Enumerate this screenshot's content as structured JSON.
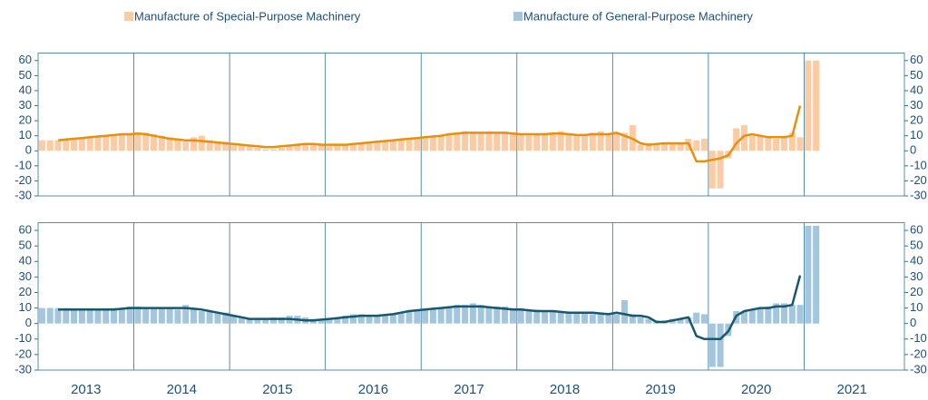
{
  "chart_data": [
    {
      "type": "bar",
      "series": [
        {
          "name": "Manufacture of Special-Purpose Machinery",
          "color": "#fbcba3",
          "values": [
            7,
            7,
            7,
            8,
            8,
            9,
            9,
            10,
            10,
            11,
            11,
            11,
            12,
            12,
            11,
            10,
            9,
            7,
            6,
            9,
            10,
            7,
            6,
            6,
            5,
            4,
            3,
            2,
            1,
            1,
            2,
            3,
            4,
            5,
            4,
            4,
            3,
            4,
            4,
            4,
            5,
            5,
            6,
            6,
            7,
            7,
            8,
            8,
            9,
            9,
            10,
            11,
            12,
            13,
            12,
            12,
            13,
            12,
            12,
            12,
            11,
            10,
            11,
            11,
            12,
            13,
            11,
            10,
            10,
            12,
            13,
            11,
            12,
            12,
            17,
            4,
            5,
            4,
            5,
            5,
            5,
            8,
            7,
            8,
            -25,
            -25,
            -5,
            15,
            17,
            10,
            10,
            9,
            8,
            10,
            12,
            9,
            60,
            60,
            null,
            null,
            null,
            null,
            null,
            null,
            null,
            null,
            null,
            null
          ]
        },
        {
          "type": "line",
          "color": "#e8900e",
          "values": [
            null,
            null,
            7,
            7.5,
            8,
            8.5,
            9,
            9.5,
            10,
            10.5,
            11,
            11,
            11.5,
            11,
            10,
            9,
            8,
            7.5,
            7,
            7,
            6.5,
            6,
            5.5,
            5,
            4.5,
            4,
            3.5,
            3,
            2.5,
            2.5,
            3,
            3.5,
            4,
            4.5,
            4.5,
            4,
            4,
            4,
            4,
            4.5,
            5,
            5.5,
            6,
            6.5,
            7,
            7.5,
            8,
            8.5,
            9,
            9.5,
            10,
            11,
            11.5,
            12,
            12,
            12,
            12,
            12,
            12,
            11.5,
            11,
            11,
            11,
            11,
            11.5,
            11.5,
            11,
            10.5,
            10.5,
            11,
            11,
            11,
            12,
            10,
            8,
            5,
            4,
            4.5,
            5,
            5,
            5,
            5,
            -7,
            -7,
            -6,
            -5,
            -3,
            5,
            10,
            11,
            10,
            9,
            9,
            9,
            10,
            30,
            null,
            null,
            null,
            null,
            null,
            null,
            null,
            null,
            null,
            null,
            null,
            null
          ]
        }
      ],
      "ylim": [
        -30,
        65
      ],
      "yticks": [
        -30,
        -20,
        -10,
        0,
        10,
        20,
        30,
        40,
        50,
        60
      ],
      "y2lim": [
        -30,
        65
      ],
      "y2ticks": [
        -30,
        -20,
        -10,
        0,
        10,
        20,
        30,
        40,
        50,
        60
      ]
    },
    {
      "type": "bar",
      "categories": [
        null,
        null,
        null,
        null,
        null,
        "2013",
        null,
        null,
        null,
        null,
        null,
        null,
        null,
        null,
        null,
        null,
        null,
        "2014",
        null,
        null,
        null,
        null,
        null,
        null,
        null,
        null,
        null,
        null,
        null,
        "2015",
        null,
        null,
        null,
        null,
        null,
        null,
        null,
        null,
        null,
        null,
        null,
        "2016",
        null,
        null,
        null,
        null,
        null,
        null,
        null,
        null,
        null,
        null,
        null,
        "2017",
        null,
        null,
        null,
        null,
        null,
        null,
        null,
        null,
        null,
        null,
        null,
        "2018",
        null,
        null,
        null,
        null,
        null,
        null,
        null,
        null,
        null,
        null,
        null,
        "2019",
        null,
        null,
        null,
        null,
        null,
        null,
        null,
        null,
        null,
        null,
        null,
        "2020",
        null,
        null,
        null,
        null,
        null,
        null,
        null,
        null,
        null,
        null,
        null,
        "2021",
        null,
        null,
        null,
        null,
        null,
        null
      ],
      "series": [
        {
          "name": "Manufacture of General-Purpose Machinery",
          "color": "#a3c6de",
          "values": [
            10,
            10,
            10,
            10,
            9,
            9,
            9,
            9,
            9,
            10,
            10,
            11,
            11,
            10,
            10,
            10,
            10,
            9,
            12,
            9,
            8,
            8,
            7,
            7,
            5,
            4,
            3,
            3,
            3,
            4,
            4,
            5,
            5,
            4,
            3,
            3,
            3,
            4,
            5,
            6,
            6,
            5,
            5,
            5,
            6,
            7,
            8,
            9,
            9,
            10,
            10,
            11,
            12,
            12,
            13,
            12,
            11,
            11,
            11,
            10,
            10,
            9,
            9,
            8,
            8,
            8,
            7,
            7,
            7,
            6,
            6,
            6,
            6,
            15,
            6,
            4,
            3,
            2,
            2,
            3,
            3,
            4,
            7,
            6,
            -28,
            -28,
            -8,
            8,
            8,
            9,
            10,
            11,
            13,
            13,
            12,
            12,
            63,
            63,
            null,
            null,
            null,
            null,
            null,
            null,
            null,
            null,
            null,
            null
          ]
        },
        {
          "type": "line",
          "color": "#17586f",
          "values": [
            null,
            null,
            9,
            9,
            9,
            9,
            9,
            9,
            9,
            9,
            9.5,
            10,
            10,
            10,
            10,
            10,
            10,
            10,
            10,
            9.5,
            9,
            8,
            7,
            6,
            5,
            4,
            3,
            3,
            3,
            3,
            3,
            3,
            2.5,
            2,
            2,
            2.5,
            3,
            3.5,
            4,
            4.5,
            5,
            5,
            5,
            5.5,
            6,
            7,
            8,
            8.5,
            9,
            9.5,
            10,
            10.5,
            11,
            11,
            11,
            11,
            10.5,
            10,
            9.5,
            9,
            9,
            8.5,
            8,
            8,
            8,
            7.5,
            7,
            7,
            7,
            7,
            6.5,
            6,
            7,
            6,
            5,
            5,
            4,
            1,
            1,
            2,
            3,
            4,
            -8,
            -10,
            -10,
            -10,
            -5,
            5,
            8,
            9,
            10,
            10,
            11,
            11,
            12,
            31,
            null,
            null,
            null,
            null,
            null,
            null,
            null,
            null,
            null,
            null,
            null,
            null
          ]
        }
      ],
      "ylim": [
        -30,
        65
      ],
      "yticks": [
        -30,
        -20,
        -10,
        0,
        10,
        20,
        30,
        40,
        50,
        60
      ],
      "y2lim": [
        -30,
        65
      ],
      "y2ticks": [
        -30,
        -20,
        -10,
        0,
        10,
        20,
        30,
        40,
        50,
        60
      ]
    }
  ]
}
